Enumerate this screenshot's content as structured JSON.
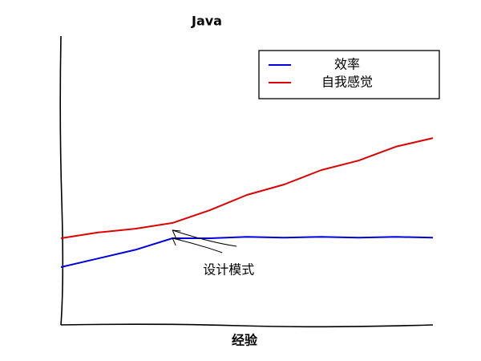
{
  "chart_data": {
    "type": "line",
    "title": "Java",
    "xlabel": "经验",
    "x": [
      0,
      1,
      2,
      3,
      4,
      5,
      6,
      7,
      8,
      9,
      10
    ],
    "series": [
      {
        "name": "效率",
        "color": "#0000dd",
        "values": [
          2.0,
          2.3,
          2.6,
          3.0,
          3.0,
          3.05,
          3.02,
          3.05,
          3.02,
          3.05,
          3.02
        ]
      },
      {
        "name": "自我感觉",
        "color": "#dd0000",
        "values": [
          3.0,
          3.2,
          3.33,
          3.53,
          3.97,
          4.5,
          4.86,
          5.36,
          5.69,
          6.17,
          6.47
        ]
      }
    ],
    "xlim": [
      0,
      10
    ],
    "ylim": [
      0,
      10
    ],
    "legend": "upper right",
    "annotations": [
      {
        "text": "设计模式",
        "x": 3,
        "y": 3.0
      }
    ]
  }
}
